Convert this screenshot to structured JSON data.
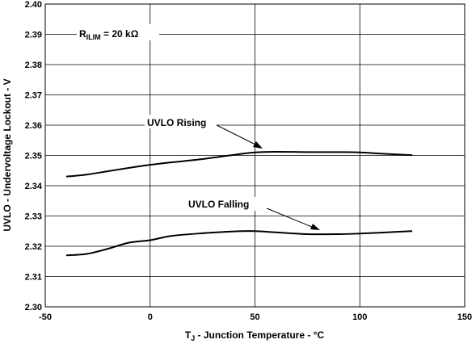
{
  "chart_data": {
    "type": "line",
    "xlabel_main": "T",
    "xlabel_sub": "J",
    "xlabel_rest": " - Junction Temperature - °C",
    "ylabel": "UVLO - Undervoltage Lockout - V",
    "xlim": [
      -50,
      150
    ],
    "ylim": [
      2.3,
      2.4
    ],
    "x_ticks": [
      -50,
      0,
      50,
      100,
      150
    ],
    "x_tick_labels": [
      "-50",
      "0",
      "50",
      "100",
      "150"
    ],
    "y_ticks": [
      2.3,
      2.31,
      2.32,
      2.33,
      2.34,
      2.35,
      2.36,
      2.37,
      2.38,
      2.39,
      2.4
    ],
    "y_tick_labels": [
      "2.30",
      "2.31",
      "2.32",
      "2.33",
      "2.34",
      "2.35",
      "2.36",
      "2.37",
      "2.38",
      "2.39",
      "2.40"
    ],
    "grid": true,
    "legend": "none",
    "series": [
      {
        "name": "UVLO Rising",
        "x": [
          -40,
          -30,
          -20,
          -10,
          0,
          10,
          25,
          40,
          50,
          60,
          75,
          90,
          100,
          110,
          125
        ],
        "values": [
          2.343,
          2.3437,
          2.3448,
          2.3459,
          2.3469,
          2.3477,
          2.3488,
          2.3502,
          2.351,
          2.3512,
          2.3511,
          2.3511,
          2.351,
          2.3506,
          2.3501
        ]
      },
      {
        "name": "UVLO Falling",
        "x": [
          -40,
          -30,
          -20,
          -10,
          0,
          10,
          25,
          40,
          50,
          60,
          75,
          90,
          100,
          110,
          125
        ],
        "values": [
          2.317,
          2.3175,
          2.3192,
          2.3212,
          2.322,
          2.3234,
          2.3243,
          2.3249,
          2.325,
          2.3246,
          2.324,
          2.324,
          2.3242,
          2.3245,
          2.325
        ]
      }
    ],
    "annotations": {
      "param_main": "R",
      "param_sub": "ILIM",
      "param_value": " = 20 kΩ",
      "rising_label": "UVLO Rising",
      "falling_label": "UVLO Falling"
    }
  }
}
